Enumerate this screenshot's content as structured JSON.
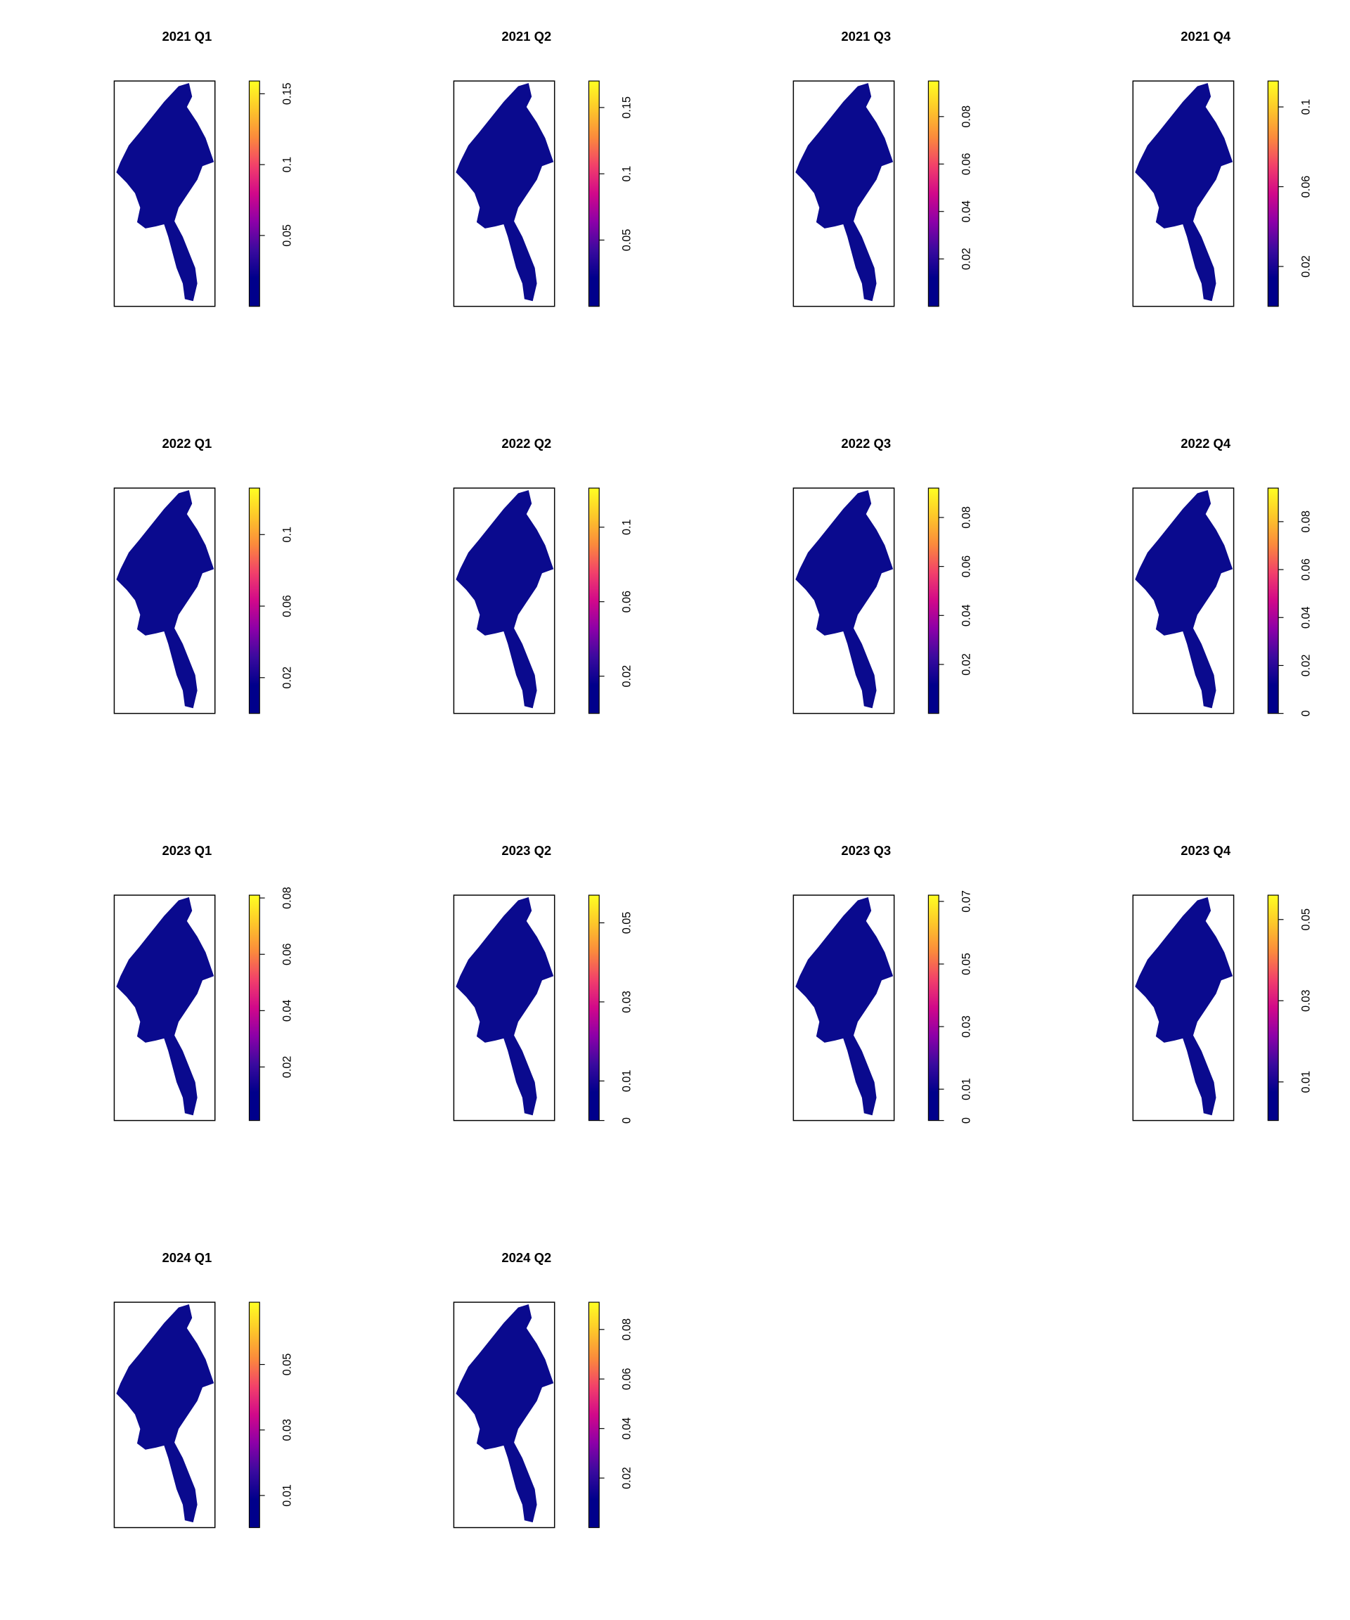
{
  "chart_data": [
    {
      "type": "heatmap",
      "title": "2021 Q1",
      "zlim": [
        0,
        0.159
      ],
      "zticks": [
        0.05,
        0.1,
        0.15
      ],
      "colors": [
        "#00008b",
        "#00008b",
        "#3a0a9e",
        "#8c00a8",
        "#d1088a",
        "#f2406a",
        "#fb8a3c",
        "#fdc72a",
        "#ffff22"
      ]
    },
    {
      "type": "heatmap",
      "title": "2021 Q2",
      "zlim": [
        0,
        0.17
      ],
      "zticks": [
        0.05,
        0.1,
        0.15
      ],
      "colors": [
        "#00008b",
        "#00008b",
        "#3a0a9e",
        "#8c00a8",
        "#d1088a",
        "#f2406a",
        "#fb8a3c",
        "#fdc72a",
        "#ffff22"
      ]
    },
    {
      "type": "heatmap",
      "title": "2021 Q3",
      "zlim": [
        0,
        0.095
      ],
      "zticks": [
        0.02,
        0.04,
        0.06,
        0.08
      ],
      "colors": [
        "#00008b",
        "#00008b",
        "#3a0a9e",
        "#8c00a8",
        "#d1088a",
        "#f2406a",
        "#fb8a3c",
        "#fdc72a",
        "#ffff22"
      ]
    },
    {
      "type": "heatmap",
      "title": "2021 Q4",
      "zlim": [
        0,
        0.113
      ],
      "zticks": [
        0.02,
        0.06,
        0.1
      ],
      "colors": [
        "#00008b",
        "#00008b",
        "#3a0a9e",
        "#8c00a8",
        "#d1088a",
        "#f2406a",
        "#fb8a3c",
        "#fdc72a",
        "#ffff22"
      ]
    },
    {
      "type": "heatmap",
      "title": "2022 Q1",
      "zlim": [
        0,
        0.126
      ],
      "zticks": [
        0.02,
        0.06,
        0.1
      ],
      "colors": [
        "#00008b",
        "#00008b",
        "#3a0a9e",
        "#8c00a8",
        "#d1088a",
        "#f2406a",
        "#fb8a3c",
        "#fdc72a",
        "#ffff22"
      ]
    },
    {
      "type": "heatmap",
      "title": "2022 Q2",
      "zlim": [
        0,
        0.121
      ],
      "zticks": [
        0.02,
        0.06,
        0.1
      ],
      "colors": [
        "#00008b",
        "#00008b",
        "#3a0a9e",
        "#8c00a8",
        "#d1088a",
        "#f2406a",
        "#fb8a3c",
        "#fdc72a",
        "#ffff22"
      ]
    },
    {
      "type": "heatmap",
      "title": "2022 Q3",
      "zlim": [
        0,
        0.092
      ],
      "zticks": [
        0.02,
        0.04,
        0.06,
        0.08
      ],
      "colors": [
        "#00008b",
        "#00008b",
        "#3a0a9e",
        "#8c00a8",
        "#d1088a",
        "#f2406a",
        "#fb8a3c",
        "#fdc72a",
        "#ffff22"
      ]
    },
    {
      "type": "heatmap",
      "title": "2022 Q4",
      "zlim": [
        0,
        0.094
      ],
      "zticks": [
        0,
        0.02,
        0.04,
        0.06,
        0.08
      ],
      "colors": [
        "#00008b",
        "#00008b",
        "#3a0a9e",
        "#8c00a8",
        "#d1088a",
        "#f2406a",
        "#fb8a3c",
        "#fdc72a",
        "#ffff22"
      ]
    },
    {
      "type": "heatmap",
      "title": "2023 Q1",
      "zlim": [
        0.001,
        0.081
      ],
      "zticks": [
        0.02,
        0.04,
        0.06,
        0.08
      ],
      "colors": [
        "#00008b",
        "#00008b",
        "#3a0a9e",
        "#8c00a8",
        "#d1088a",
        "#f2406a",
        "#fb8a3c",
        "#fdc72a",
        "#ffff22"
      ]
    },
    {
      "type": "heatmap",
      "title": "2023 Q2",
      "zlim": [
        0,
        0.057
      ],
      "zticks": [
        0,
        0.01,
        0.03,
        0.05
      ],
      "colors": [
        "#00008b",
        "#00008b",
        "#3a0a9e",
        "#8c00a8",
        "#d1088a",
        "#f2406a",
        "#fb8a3c",
        "#fdc72a",
        "#ffff22"
      ]
    },
    {
      "type": "heatmap",
      "title": "2023 Q3",
      "zlim": [
        0,
        0.072
      ],
      "zticks": [
        0,
        0.01,
        0.03,
        0.05,
        0.07
      ],
      "colors": [
        "#00008b",
        "#00008b",
        "#3a0a9e",
        "#8c00a8",
        "#d1088a",
        "#f2406a",
        "#fb8a3c",
        "#fdc72a",
        "#ffff22"
      ]
    },
    {
      "type": "heatmap",
      "title": "2023 Q4",
      "zlim": [
        0.0005,
        0.056
      ],
      "zticks": [
        0.01,
        0.03,
        0.05
      ],
      "colors": [
        "#00008b",
        "#00008b",
        "#3a0a9e",
        "#8c00a8",
        "#d1088a",
        "#f2406a",
        "#fb8a3c",
        "#fdc72a",
        "#ffff22"
      ]
    },
    {
      "type": "heatmap",
      "title": "2024 Q1",
      "zlim": [
        0.0002,
        0.069
      ],
      "zticks": [
        0.01,
        0.03,
        0.05
      ],
      "colors": [
        "#00008b",
        "#00008b",
        "#3a0a9e",
        "#8c00a8",
        "#d1088a",
        "#f2406a",
        "#fb8a3c",
        "#fdc72a",
        "#ffff22"
      ]
    },
    {
      "type": "heatmap",
      "title": "2024 Q2",
      "zlim": [
        0,
        0.091
      ],
      "zticks": [
        0.02,
        0.04,
        0.06,
        0.08
      ],
      "colors": [
        "#00008b",
        "#00008b",
        "#3a0a9e",
        "#8c00a8",
        "#d1088a",
        "#f2406a",
        "#fb8a3c",
        "#fdc72a",
        "#ffff22"
      ]
    }
  ]
}
